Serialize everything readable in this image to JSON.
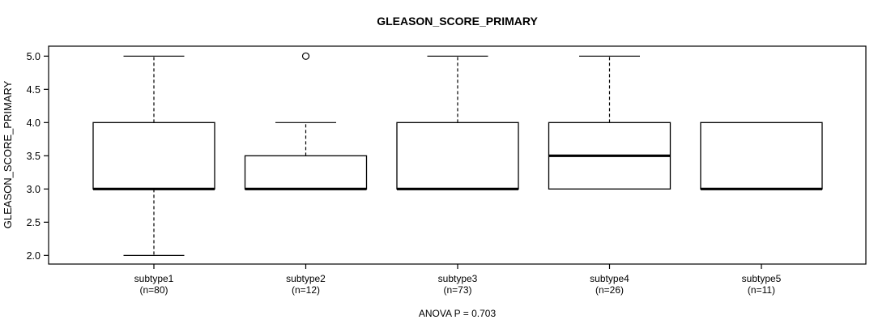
{
  "chart_data": {
    "type": "boxplot",
    "title": "GLEASON_SCORE_PRIMARY",
    "ylabel": "GLEASON_SCORE_PRIMARY",
    "xlabel": "",
    "footer": "ANOVA P = 0.703",
    "ylim": [
      1.87,
      5.15
    ],
    "yticks": [
      "2.0",
      "2.5",
      "3.0",
      "3.5",
      "4.0",
      "4.5",
      "5.0"
    ],
    "grid": false,
    "legend": "none",
    "categories": [
      "subtype1",
      "subtype2",
      "subtype3",
      "subtype4",
      "subtype5"
    ],
    "series": [
      {
        "label": "subtype1",
        "n_label": "(n=80)",
        "n": 80,
        "min": 2.0,
        "q1": 3.0,
        "median": 3.0,
        "q3": 4.0,
        "max": 5.0,
        "outliers": []
      },
      {
        "label": "subtype2",
        "n_label": "(n=12)",
        "n": 12,
        "min": 3.0,
        "q1": 3.0,
        "median": 3.0,
        "q3": 3.5,
        "max": 4.0,
        "outliers": [
          5.0
        ]
      },
      {
        "label": "subtype3",
        "n_label": "(n=73)",
        "n": 73,
        "min": 3.0,
        "q1": 3.0,
        "median": 3.0,
        "q3": 4.0,
        "max": 5.0,
        "outliers": []
      },
      {
        "label": "subtype4",
        "n_label": "(n=26)",
        "n": 26,
        "min": 3.0,
        "q1": 3.0,
        "median": 3.5,
        "q3": 4.0,
        "max": 5.0,
        "outliers": []
      },
      {
        "label": "subtype5",
        "n_label": "(n=11)",
        "n": 11,
        "min": 3.0,
        "q1": 3.0,
        "median": 3.0,
        "q3": 4.0,
        "max": 4.0,
        "outliers": []
      }
    ],
    "colors": {
      "stroke": "#000000",
      "box_fill": "#ffffff",
      "background": "#ffffff"
    }
  }
}
